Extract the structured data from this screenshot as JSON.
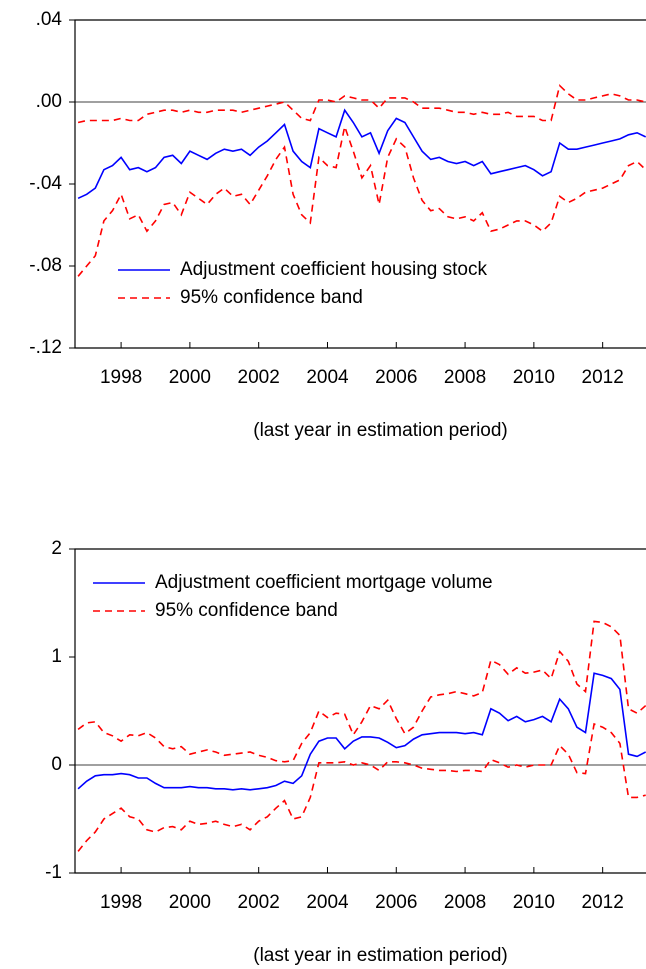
{
  "chart_data": [
    {
      "type": "line",
      "xlabel": "(last year in estimation period)",
      "x": [
        1996.75,
        1997,
        1997.25,
        1997.5,
        1997.75,
        1998,
        1998.25,
        1998.5,
        1998.75,
        1999,
        1999.25,
        1999.5,
        1999.75,
        2000,
        2000.25,
        2000.5,
        2000.75,
        2001,
        2001.25,
        2001.5,
        2001.75,
        2002,
        2002.25,
        2002.5,
        2002.75,
        2003,
        2003.25,
        2003.5,
        2003.75,
        2004,
        2004.25,
        2004.5,
        2004.75,
        2005,
        2005.25,
        2005.5,
        2005.75,
        2006,
        2006.25,
        2006.5,
        2006.75,
        2007,
        2007.25,
        2007.5,
        2007.75,
        2008,
        2008.25,
        2008.5,
        2008.75,
        2009,
        2009.25,
        2009.5,
        2009.75,
        2010,
        2010.25,
        2010.5,
        2010.75,
        2011,
        2011.25,
        2011.5,
        2011.75,
        2012,
        2012.25,
        2012.5,
        2012.75,
        2013,
        2013.25
      ],
      "xlim": [
        1996.66,
        2013.26
      ],
      "xticks": [
        1998,
        2000,
        2002,
        2004,
        2006,
        2008,
        2010,
        2012
      ],
      "ylim": [
        -0.12,
        0.04
      ],
      "yticks": [
        {
          "value": 0.04,
          "label": ".04"
        },
        {
          "value": 0,
          "label": ".00"
        },
        {
          "value": -0.04,
          "label": "-.04"
        },
        {
          "value": -0.08,
          "label": "-.08"
        },
        {
          "value": -0.12,
          "label": "-.12"
        }
      ],
      "zero_line": true,
      "legend": "lower center",
      "series": [
        {
          "name": "Adjustment coefficient housing stock",
          "color": "#0000ff",
          "values": [
            -0.047,
            -0.045,
            -0.042,
            -0.033,
            -0.031,
            -0.027,
            -0.033,
            -0.032,
            -0.034,
            -0.032,
            -0.027,
            -0.026,
            -0.03,
            -0.024,
            -0.026,
            -0.028,
            -0.025,
            -0.023,
            -0.024,
            -0.023,
            -0.026,
            -0.022,
            -0.019,
            -0.015,
            -0.011,
            -0.024,
            -0.029,
            -0.032,
            -0.013,
            -0.015,
            -0.017,
            -0.004,
            -0.01,
            -0.017,
            -0.015,
            -0.025,
            -0.014,
            -0.008,
            -0.01,
            -0.017,
            -0.024,
            -0.028,
            -0.027,
            -0.029,
            -0.03,
            -0.029,
            -0.031,
            -0.029,
            -0.035,
            -0.034,
            -0.033,
            -0.032,
            -0.031,
            -0.033,
            -0.036,
            -0.034,
            -0.02,
            -0.023,
            -0.023,
            -0.022,
            -0.021,
            -0.02,
            -0.019,
            -0.018,
            -0.016,
            -0.015,
            -0.017
          ]
        }
      ],
      "band": {
        "name": "95% confidence band",
        "color": "#ff0000",
        "style": "dashed",
        "upper": [
          -0.01,
          -0.009,
          -0.009,
          -0.009,
          -0.009,
          -0.008,
          -0.009,
          -0.009,
          -0.006,
          -0.005,
          -0.004,
          -0.004,
          -0.005,
          -0.004,
          -0.005,
          -0.005,
          -0.004,
          -0.004,
          -0.004,
          -0.005,
          -0.004,
          -0.003,
          -0.002,
          -0.001,
          0.0,
          -0.004,
          -0.008,
          -0.009,
          0.001,
          0.001,
          0.0,
          0.003,
          0.002,
          0.001,
          0.001,
          -0.003,
          0.002,
          0.002,
          0.002,
          0.0,
          -0.003,
          -0.003,
          -0.003,
          -0.004,
          -0.005,
          -0.005,
          -0.006,
          -0.005,
          -0.006,
          -0.006,
          -0.005,
          -0.007,
          -0.007,
          -0.007,
          -0.009,
          -0.009,
          0.008,
          0.004,
          0.001,
          0.001,
          0.002,
          0.003,
          0.004,
          0.003,
          0.001,
          0.001,
          0.0
        ],
        "lower": [
          -0.085,
          -0.08,
          -0.075,
          -0.058,
          -0.053,
          -0.045,
          -0.057,
          -0.055,
          -0.063,
          -0.058,
          -0.05,
          -0.049,
          -0.055,
          -0.044,
          -0.047,
          -0.05,
          -0.045,
          -0.042,
          -0.046,
          -0.045,
          -0.05,
          -0.043,
          -0.036,
          -0.028,
          -0.022,
          -0.045,
          -0.055,
          -0.059,
          -0.027,
          -0.031,
          -0.032,
          -0.012,
          -0.024,
          -0.037,
          -0.031,
          -0.05,
          -0.027,
          -0.018,
          -0.022,
          -0.037,
          -0.048,
          -0.053,
          -0.052,
          -0.056,
          -0.057,
          -0.056,
          -0.058,
          -0.054,
          -0.063,
          -0.062,
          -0.06,
          -0.058,
          -0.058,
          -0.06,
          -0.063,
          -0.059,
          -0.046,
          -0.049,
          -0.047,
          -0.044,
          -0.043,
          -0.042,
          -0.04,
          -0.038,
          -0.031,
          -0.029,
          -0.033
        ]
      }
    },
    {
      "type": "line",
      "xlabel": "(last year in estimation period)",
      "x": [
        1996.75,
        1997,
        1997.25,
        1997.5,
        1997.75,
        1998,
        1998.25,
        1998.5,
        1998.75,
        1999,
        1999.25,
        1999.5,
        1999.75,
        2000,
        2000.25,
        2000.5,
        2000.75,
        2001,
        2001.25,
        2001.5,
        2001.75,
        2002,
        2002.25,
        2002.5,
        2002.75,
        2003,
        2003.25,
        2003.5,
        2003.75,
        2004,
        2004.25,
        2004.5,
        2004.75,
        2005,
        2005.25,
        2005.5,
        2005.75,
        2006,
        2006.25,
        2006.5,
        2006.75,
        2007,
        2007.25,
        2007.5,
        2007.75,
        2008,
        2008.25,
        2008.5,
        2008.75,
        2009,
        2009.25,
        2009.5,
        2009.75,
        2010,
        2010.25,
        2010.5,
        2010.75,
        2011,
        2011.25,
        2011.5,
        2011.75,
        2012,
        2012.25,
        2012.5,
        2012.75,
        2013,
        2013.25
      ],
      "xlim": [
        1996.66,
        2013.26
      ],
      "xticks": [
        1998,
        2000,
        2002,
        2004,
        2006,
        2008,
        2010,
        2012
      ],
      "ylim": [
        -1,
        2
      ],
      "yticks": [
        2,
        1,
        0,
        -1
      ],
      "zero_line": true,
      "legend": "upper left",
      "series": [
        {
          "name": "Adjustment coefficient mortgage volume",
          "color": "#0000ff",
          "values": [
            -0.22,
            -0.15,
            -0.1,
            -0.09,
            -0.09,
            -0.08,
            -0.09,
            -0.12,
            -0.12,
            -0.17,
            -0.21,
            -0.21,
            -0.21,
            -0.2,
            -0.21,
            -0.21,
            -0.22,
            -0.22,
            -0.23,
            -0.22,
            -0.23,
            -0.22,
            -0.21,
            -0.19,
            -0.15,
            -0.17,
            -0.1,
            0.1,
            0.22,
            0.25,
            0.25,
            0.15,
            0.22,
            0.26,
            0.26,
            0.25,
            0.21,
            0.16,
            0.18,
            0.24,
            0.28,
            0.29,
            0.3,
            0.3,
            0.3,
            0.29,
            0.3,
            0.28,
            0.52,
            0.48,
            0.41,
            0.45,
            0.4,
            0.42,
            0.45,
            0.4,
            0.61,
            0.52,
            0.35,
            0.3,
            0.85,
            0.83,
            0.8,
            0.7,
            0.1,
            0.08,
            0.12
          ]
        }
      ],
      "band": {
        "name": "95% confidence band",
        "color": "#ff0000",
        "style": "dashed",
        "upper": [
          0.33,
          0.39,
          0.4,
          0.3,
          0.27,
          0.22,
          0.28,
          0.27,
          0.3,
          0.25,
          0.17,
          0.15,
          0.17,
          0.1,
          0.12,
          0.14,
          0.12,
          0.09,
          0.1,
          0.11,
          0.12,
          0.09,
          0.07,
          0.04,
          0.03,
          0.04,
          0.2,
          0.3,
          0.5,
          0.44,
          0.48,
          0.47,
          0.28,
          0.4,
          0.55,
          0.52,
          0.6,
          0.43,
          0.29,
          0.35,
          0.5,
          0.63,
          0.65,
          0.66,
          0.68,
          0.66,
          0.64,
          0.67,
          0.97,
          0.93,
          0.84,
          0.9,
          0.85,
          0.86,
          0.88,
          0.8,
          1.05,
          0.96,
          0.75,
          0.68,
          1.33,
          1.32,
          1.28,
          1.2,
          0.52,
          0.48,
          0.55
        ],
        "lower": [
          -0.8,
          -0.7,
          -0.62,
          -0.5,
          -0.45,
          -0.4,
          -0.48,
          -0.5,
          -0.6,
          -0.62,
          -0.58,
          -0.57,
          -0.6,
          -0.52,
          -0.55,
          -0.54,
          -0.52,
          -0.55,
          -0.57,
          -0.55,
          -0.6,
          -0.52,
          -0.48,
          -0.4,
          -0.33,
          -0.5,
          -0.48,
          -0.3,
          0.02,
          0.02,
          0.02,
          0.03,
          0.0,
          0.02,
          0.0,
          -0.05,
          0.03,
          0.03,
          0.02,
          0.0,
          -0.03,
          -0.04,
          -0.05,
          -0.05,
          -0.06,
          -0.05,
          -0.05,
          -0.06,
          0.05,
          0.02,
          -0.02,
          0.0,
          -0.02,
          0.0,
          0.0,
          0.0,
          0.18,
          0.1,
          -0.07,
          -0.08,
          0.38,
          0.35,
          0.3,
          0.2,
          -0.3,
          -0.3,
          -0.28
        ]
      }
    }
  ]
}
